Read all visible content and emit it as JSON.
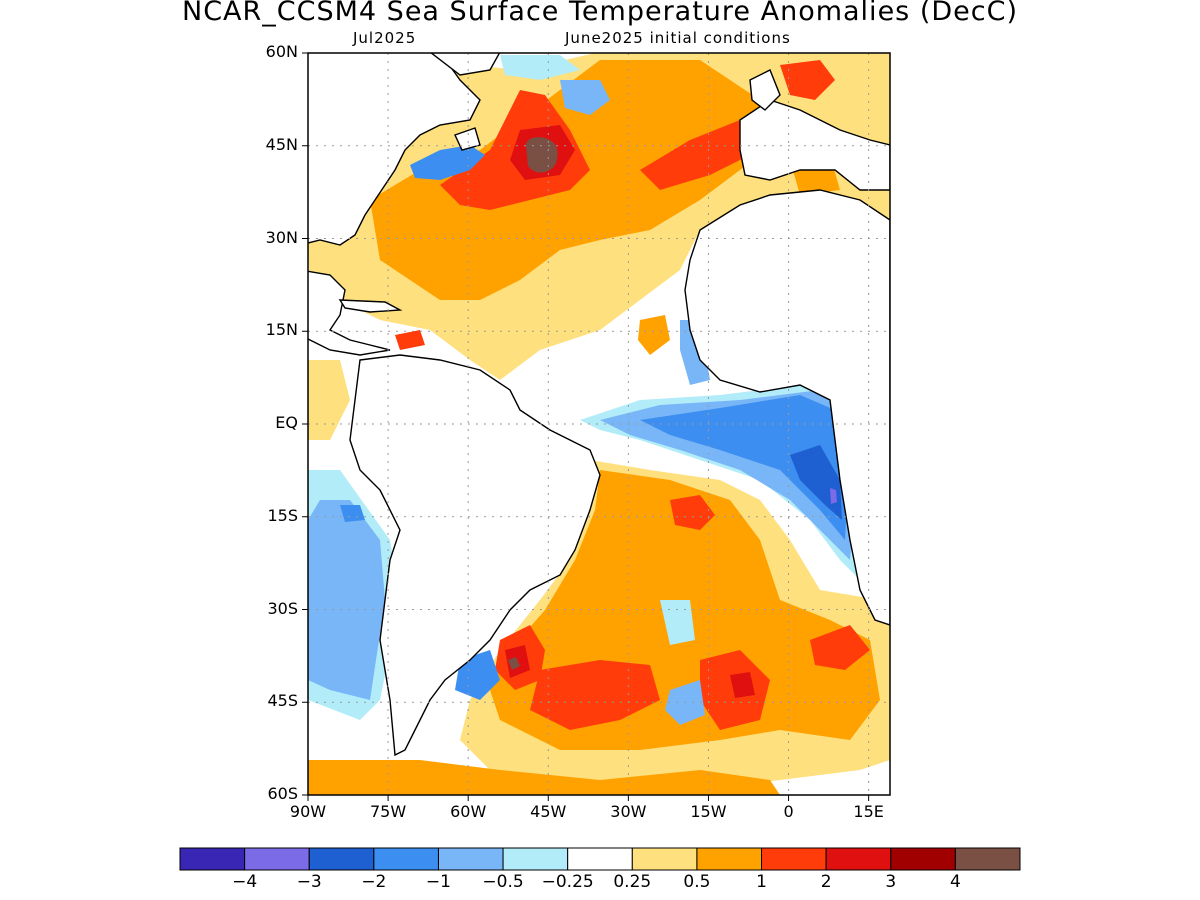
{
  "title": "NCAR_CCSM4 Sea Surface Temperature Anomalies (DecC)",
  "valid_month": "Jul2025",
  "initial_conditions": "June2025 initial conditions",
  "lat_ticks": [
    "60N",
    "45N",
    "30N",
    "15N",
    "EQ",
    "15S",
    "30S",
    "45S",
    "60S"
  ],
  "lon_ticks": [
    "90W",
    "75W",
    "60W",
    "45W",
    "30W",
    "15W",
    "0",
    "15E"
  ],
  "colorbar": {
    "colors": [
      "#3a26b4",
      "#7c6be6",
      "#1e5fd2",
      "#3c8ff0",
      "#78b6f8",
      "#b2ecf8",
      "#ffffff",
      "#ffe07e",
      "#ffa200",
      "#ff3c0a",
      "#e01010",
      "#a00000",
      "#7a5044"
    ],
    "labels": [
      "−4",
      "−3",
      "−2",
      "−1",
      "−0.5",
      "−0.25",
      "0.25",
      "0.5",
      "1",
      "2",
      "3",
      "4"
    ]
  },
  "map": {
    "lon_range": [
      -90,
      19
    ],
    "lat_range": [
      -60,
      60
    ],
    "grid": true
  }
}
